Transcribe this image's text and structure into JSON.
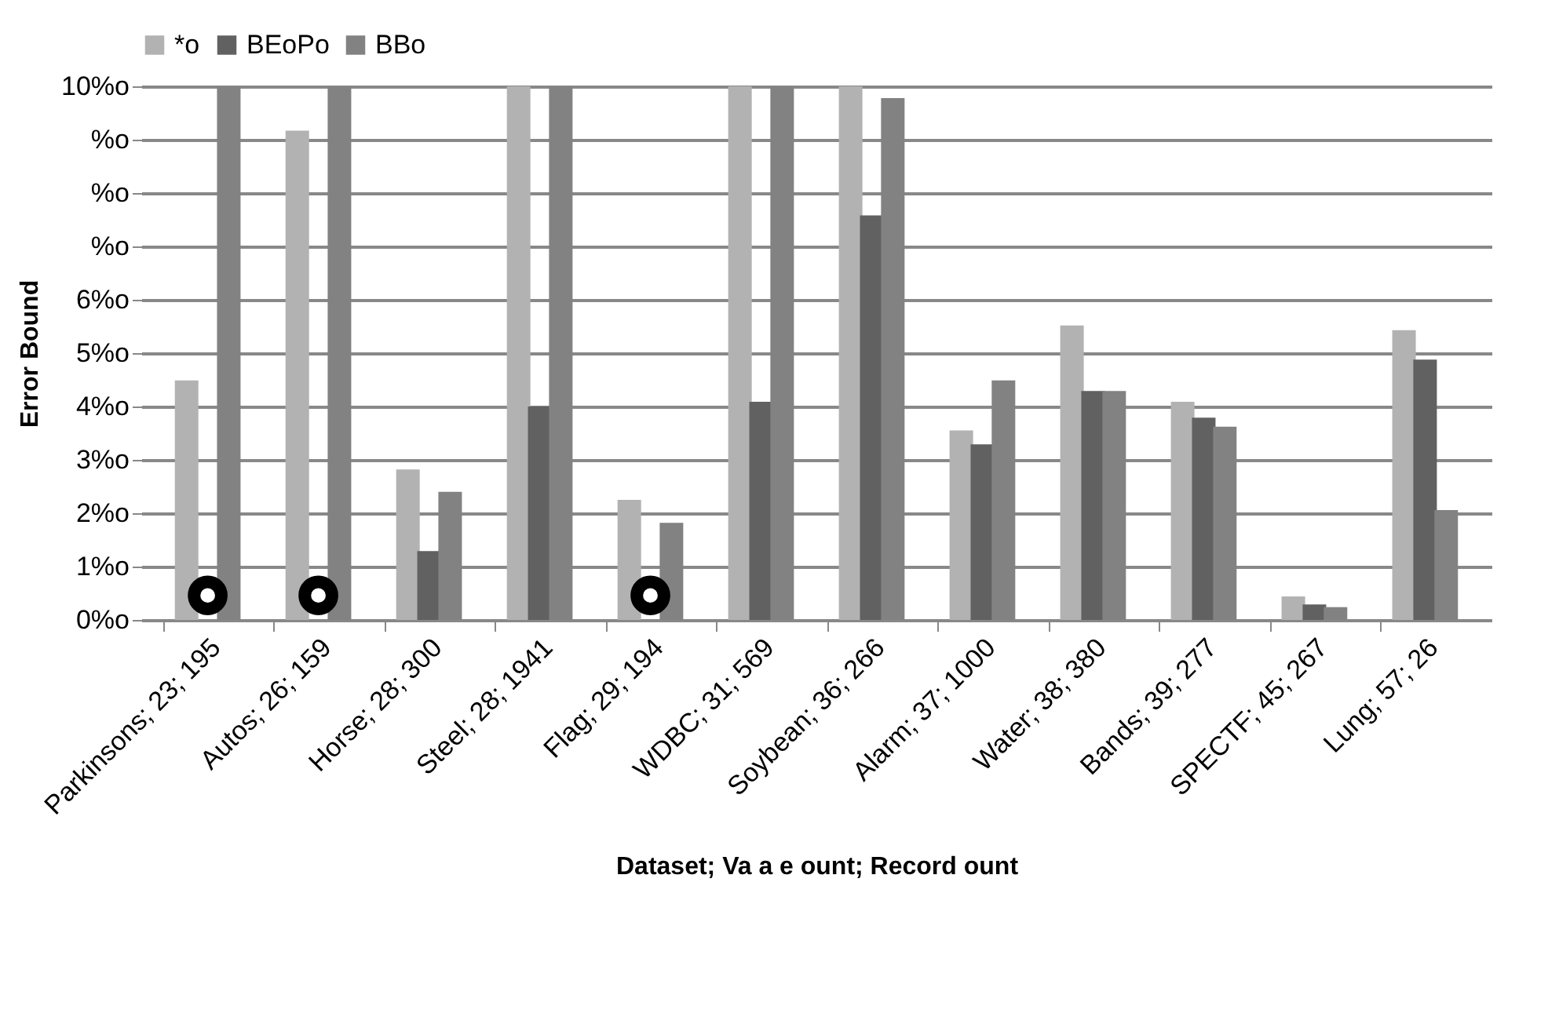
{
  "chart_data": {
    "type": "bar",
    "xlabel": "Dataset; Va  a   e   ount; Record   ount",
    "ylabel": "Error Bound",
    "categories": [
      "Parkinsons; 23; 195",
      "Autos; 26; 159",
      "Horse; 28; 300",
      "Steel; 28; 1941",
      "Flag; 29; 194",
      "WDBC; 31; 569",
      "Soybean; 36; 266",
      "Alarm; 37; 1000",
      "Water; 38; 380",
      "Bands; 39; 277",
      "SPECTF; 45; 267",
      "Lung; 57; 26"
    ],
    "series": [
      {
        "name": "*o",
        "color": "#b2b2b2",
        "values": [
          4.49,
          9.17,
          2.82,
          10,
          2.25,
          10,
          10,
          3.55,
          5.52,
          4.09,
          0.44,
          5.43
        ]
      },
      {
        "name": "BEoPo",
        "color": "#616161",
        "values": [
          null,
          null,
          1.29,
          4.0,
          null,
          4.09,
          7.58,
          3.29,
          4.29,
          3.79,
          0.29,
          4.88
        ]
      },
      {
        "name": "BBo",
        "color": "#828282",
        "values": [
          10,
          10,
          2.4,
          10,
          1.82,
          10,
          9.78,
          4.49,
          4.29,
          3.62,
          0.24,
          2.06
        ]
      },
      {
        "type": "scatter",
        "color": "#000000",
        "marker": "circle",
        "x": [
          "Parkinsons; 23; 195",
          "Autos; 26; 159",
          "Flag; 29; 194"
        ],
        "values": [
          0.46,
          0.46,
          0.46
        ]
      }
    ],
    "ylim": [
      0,
      10
    ],
    "yticks": [
      {
        "value": 0,
        "label": "0%o"
      },
      {
        "value": 1,
        "label": "1%o"
      },
      {
        "value": 2,
        "label": "2%o"
      },
      {
        "value": 3,
        "label": "3%o"
      },
      {
        "value": 4,
        "label": "4%o"
      },
      {
        "value": 5,
        "label": "5%o"
      },
      {
        "value": 6,
        "label": "6%o"
      },
      {
        "value": 7,
        "label": "%o"
      },
      {
        "value": 8,
        "label": "%o"
      },
      {
        "value": 9,
        "label": "%o"
      },
      {
        "value": 10,
        "label": "10%o"
      }
    ],
    "grid": "y",
    "legend": "top"
  }
}
